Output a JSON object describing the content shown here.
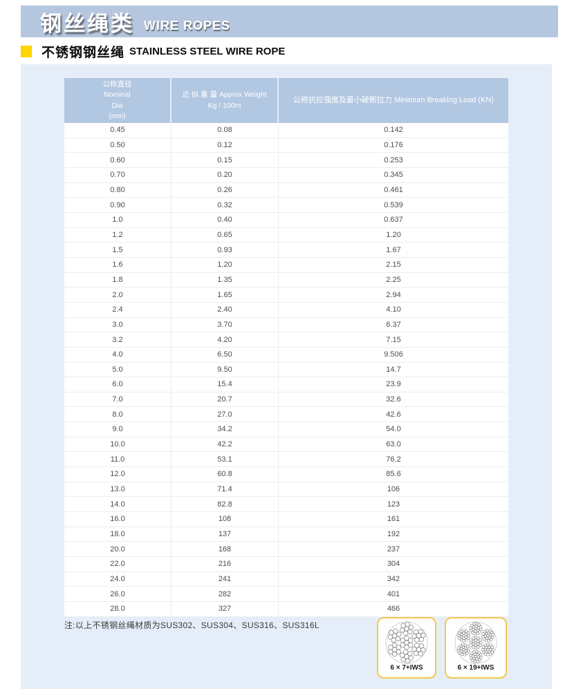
{
  "banner": {
    "title_cn": "钢丝绳类",
    "title_en": "WIRE ROPES",
    "bg_color": "#b4c7df"
  },
  "section": {
    "bullet_color": "#ffd400",
    "title_cn": "不锈钢钢丝绳",
    "title_en": "STAINLESS STEEL WIRE ROPE"
  },
  "table": {
    "header": {
      "col1_lines": [
        "公称直径",
        "Nominal",
        "Dia",
        "(mm)"
      ],
      "col2_lines": [
        "近 似 重 量 Approx Weight",
        "Kg / 100m"
      ],
      "col3": "公称抗拉强度及最小破断拉力 Minimum Breaking Load (KN)",
      "bg_color": "#b2c7e1"
    },
    "rows": [
      [
        "0.45",
        "0.08",
        "0.142"
      ],
      [
        "0.50",
        "0.12",
        "0.176"
      ],
      [
        "0.60",
        "0.15",
        "0.253"
      ],
      [
        "0.70",
        "0.20",
        "0.345"
      ],
      [
        "0.80",
        "0.26",
        "0.461"
      ],
      [
        "0.90",
        "0.32",
        "0.539"
      ],
      [
        "1.0",
        "0.40",
        "0.637"
      ],
      [
        "1.2",
        "0.65",
        "1.20"
      ],
      [
        "1.5",
        "0.93",
        "1.67"
      ],
      [
        "1.6",
        "1.20",
        "2.15"
      ],
      [
        "1.8",
        "1.35",
        "2.25"
      ],
      [
        "2.0",
        "1.65",
        "2.94"
      ],
      [
        "2.4",
        "2.40",
        "4.10"
      ],
      [
        "3.0",
        "3.70",
        "6.37"
      ],
      [
        "3.2",
        "4.20",
        "7.15"
      ],
      [
        "4.0",
        "6.50",
        "9.506"
      ],
      [
        "5.0",
        "9.50",
        "14.7"
      ],
      [
        "6.0",
        "15.4",
        "23.9"
      ],
      [
        "7.0",
        "20.7",
        "32.6"
      ],
      [
        "8.0",
        "27.0",
        "42.6"
      ],
      [
        "9.0",
        "34.2",
        "54.0"
      ],
      [
        "10.0",
        "42.2",
        "63.0"
      ],
      [
        "11.0",
        "53.1",
        "76.2"
      ],
      [
        "12.0",
        "60.8",
        "85.6"
      ],
      [
        "13.0",
        "71.4",
        "106"
      ],
      [
        "14.0",
        "82.8",
        "123"
      ],
      [
        "16.0",
        "108",
        "161"
      ],
      [
        "18.0",
        "137",
        "192"
      ],
      [
        "20.0",
        "168",
        "237"
      ],
      [
        "22.0",
        "216",
        "304"
      ],
      [
        "24.0",
        "241",
        "342"
      ],
      [
        "26.0",
        "282",
        "401"
      ],
      [
        "28.0",
        "327",
        "466"
      ]
    ]
  },
  "note": "注:以上不锈钢丝绳材质为SUS302、SUS304、SUS316、SUS316L",
  "diagrams": {
    "d1": {
      "label": "6 × 7+IWS"
    },
    "d2": {
      "label": "6 × 19+IWS"
    }
  },
  "colors": {
    "panel_bg": "#e5eef8",
    "row_divider": "#ededed",
    "box_border": "#f2c84b",
    "header_text": "#ffffff",
    "body_text": "#4c4c4c"
  }
}
